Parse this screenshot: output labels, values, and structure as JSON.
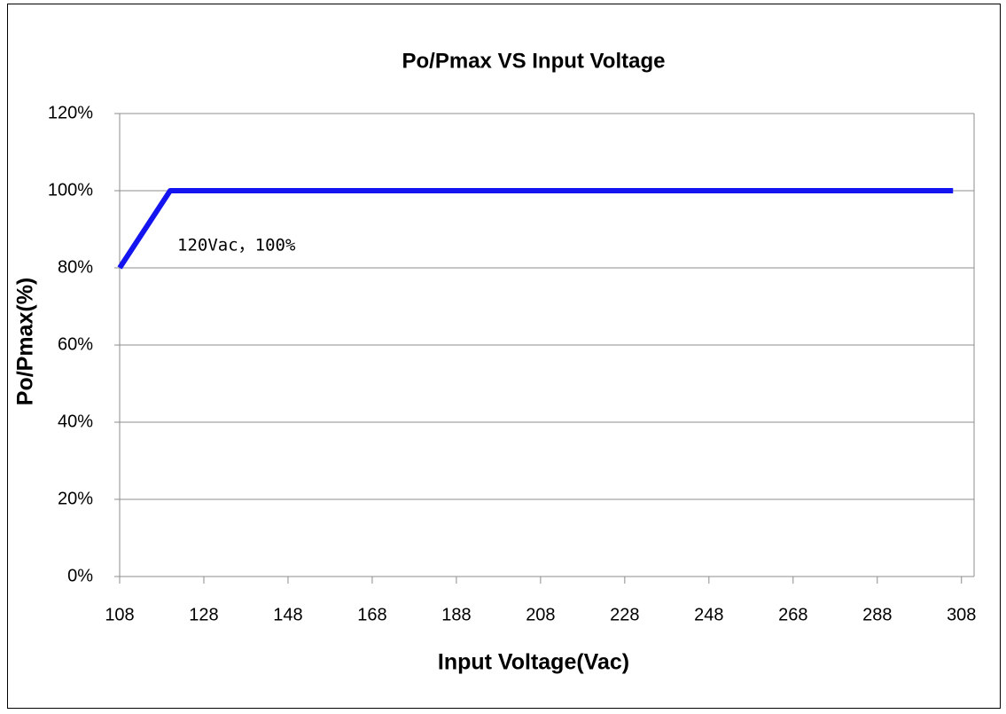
{
  "chart_data": {
    "type": "line",
    "title": "Po/Pmax VS Input Voltage",
    "x_label": "Input Voltage(Vac)",
    "y_label": "Po/Pmax(%)",
    "annotation": "120Vac，100%",
    "x": [
      108,
      120,
      306
    ],
    "values": [
      80,
      100,
      100
    ],
    "color": "#1414f0",
    "xlim": [
      108,
      311
    ],
    "xticks": [
      108,
      128,
      148,
      168,
      188,
      208,
      228,
      248,
      268,
      288,
      308
    ],
    "ylim": [
      0,
      120
    ],
    "yticks": [
      {
        "value": 0,
        "label": "0%"
      },
      {
        "value": 20,
        "label": "20%"
      },
      {
        "value": 40,
        "label": "40%"
      },
      {
        "value": 60,
        "label": "60%"
      },
      {
        "value": 80,
        "label": "80%"
      },
      {
        "value": 100,
        "label": "100%"
      },
      {
        "value": 120,
        "label": "120%"
      }
    ],
    "grid": true
  }
}
